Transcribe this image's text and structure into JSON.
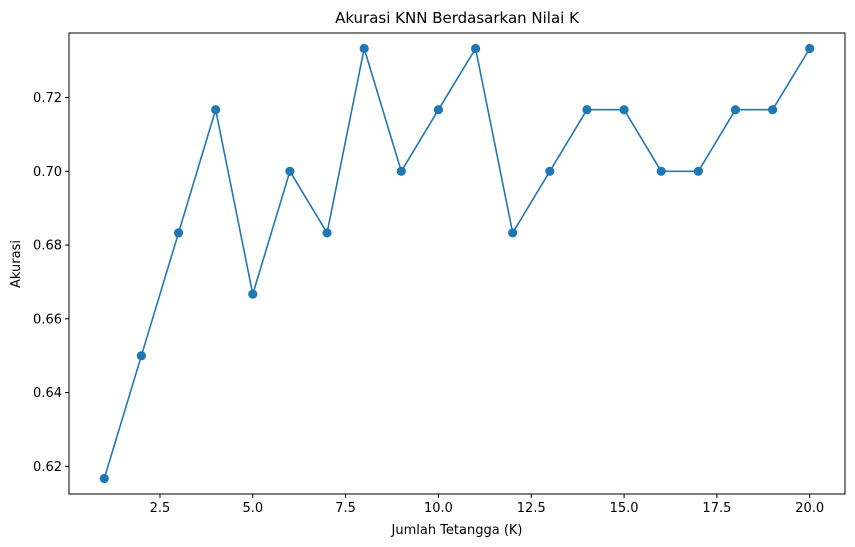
{
  "chart_data": {
    "type": "line",
    "title": "Akurasi KNN Berdasarkan Nilai K",
    "xlabel": "Jumlah Tetangga (K)",
    "ylabel": "Akurasi",
    "xlim": [
      0.05,
      20.95
    ],
    "ylim": [
      0.6125,
      0.7375
    ],
    "xticks": [
      2.5,
      5.0,
      7.5,
      10.0,
      12.5,
      15.0,
      17.5,
      20.0
    ],
    "xtick_labels": [
      "2.5",
      "5.0",
      "7.5",
      "10.0",
      "12.5",
      "15.0",
      "17.5",
      "20.0"
    ],
    "yticks": [
      0.62,
      0.64,
      0.66,
      0.68,
      0.7,
      0.72
    ],
    "ytick_labels": [
      "0.62",
      "0.64",
      "0.66",
      "0.68",
      "0.70",
      "0.72"
    ],
    "grid": false,
    "series": [
      {
        "color": "#1f77b4",
        "marker": "circle",
        "x": [
          1,
          2,
          3,
          4,
          5,
          6,
          7,
          8,
          9,
          10,
          11,
          12,
          13,
          14,
          15,
          16,
          17,
          18,
          19,
          20
        ],
        "y": [
          0.6167,
          0.65,
          0.6833,
          0.7167,
          0.6667,
          0.7,
          0.6833,
          0.7333,
          0.7,
          0.7167,
          0.7333,
          0.6833,
          0.7,
          0.7167,
          0.7167,
          0.7,
          0.7,
          0.7167,
          0.7167,
          0.7333
        ]
      }
    ]
  }
}
